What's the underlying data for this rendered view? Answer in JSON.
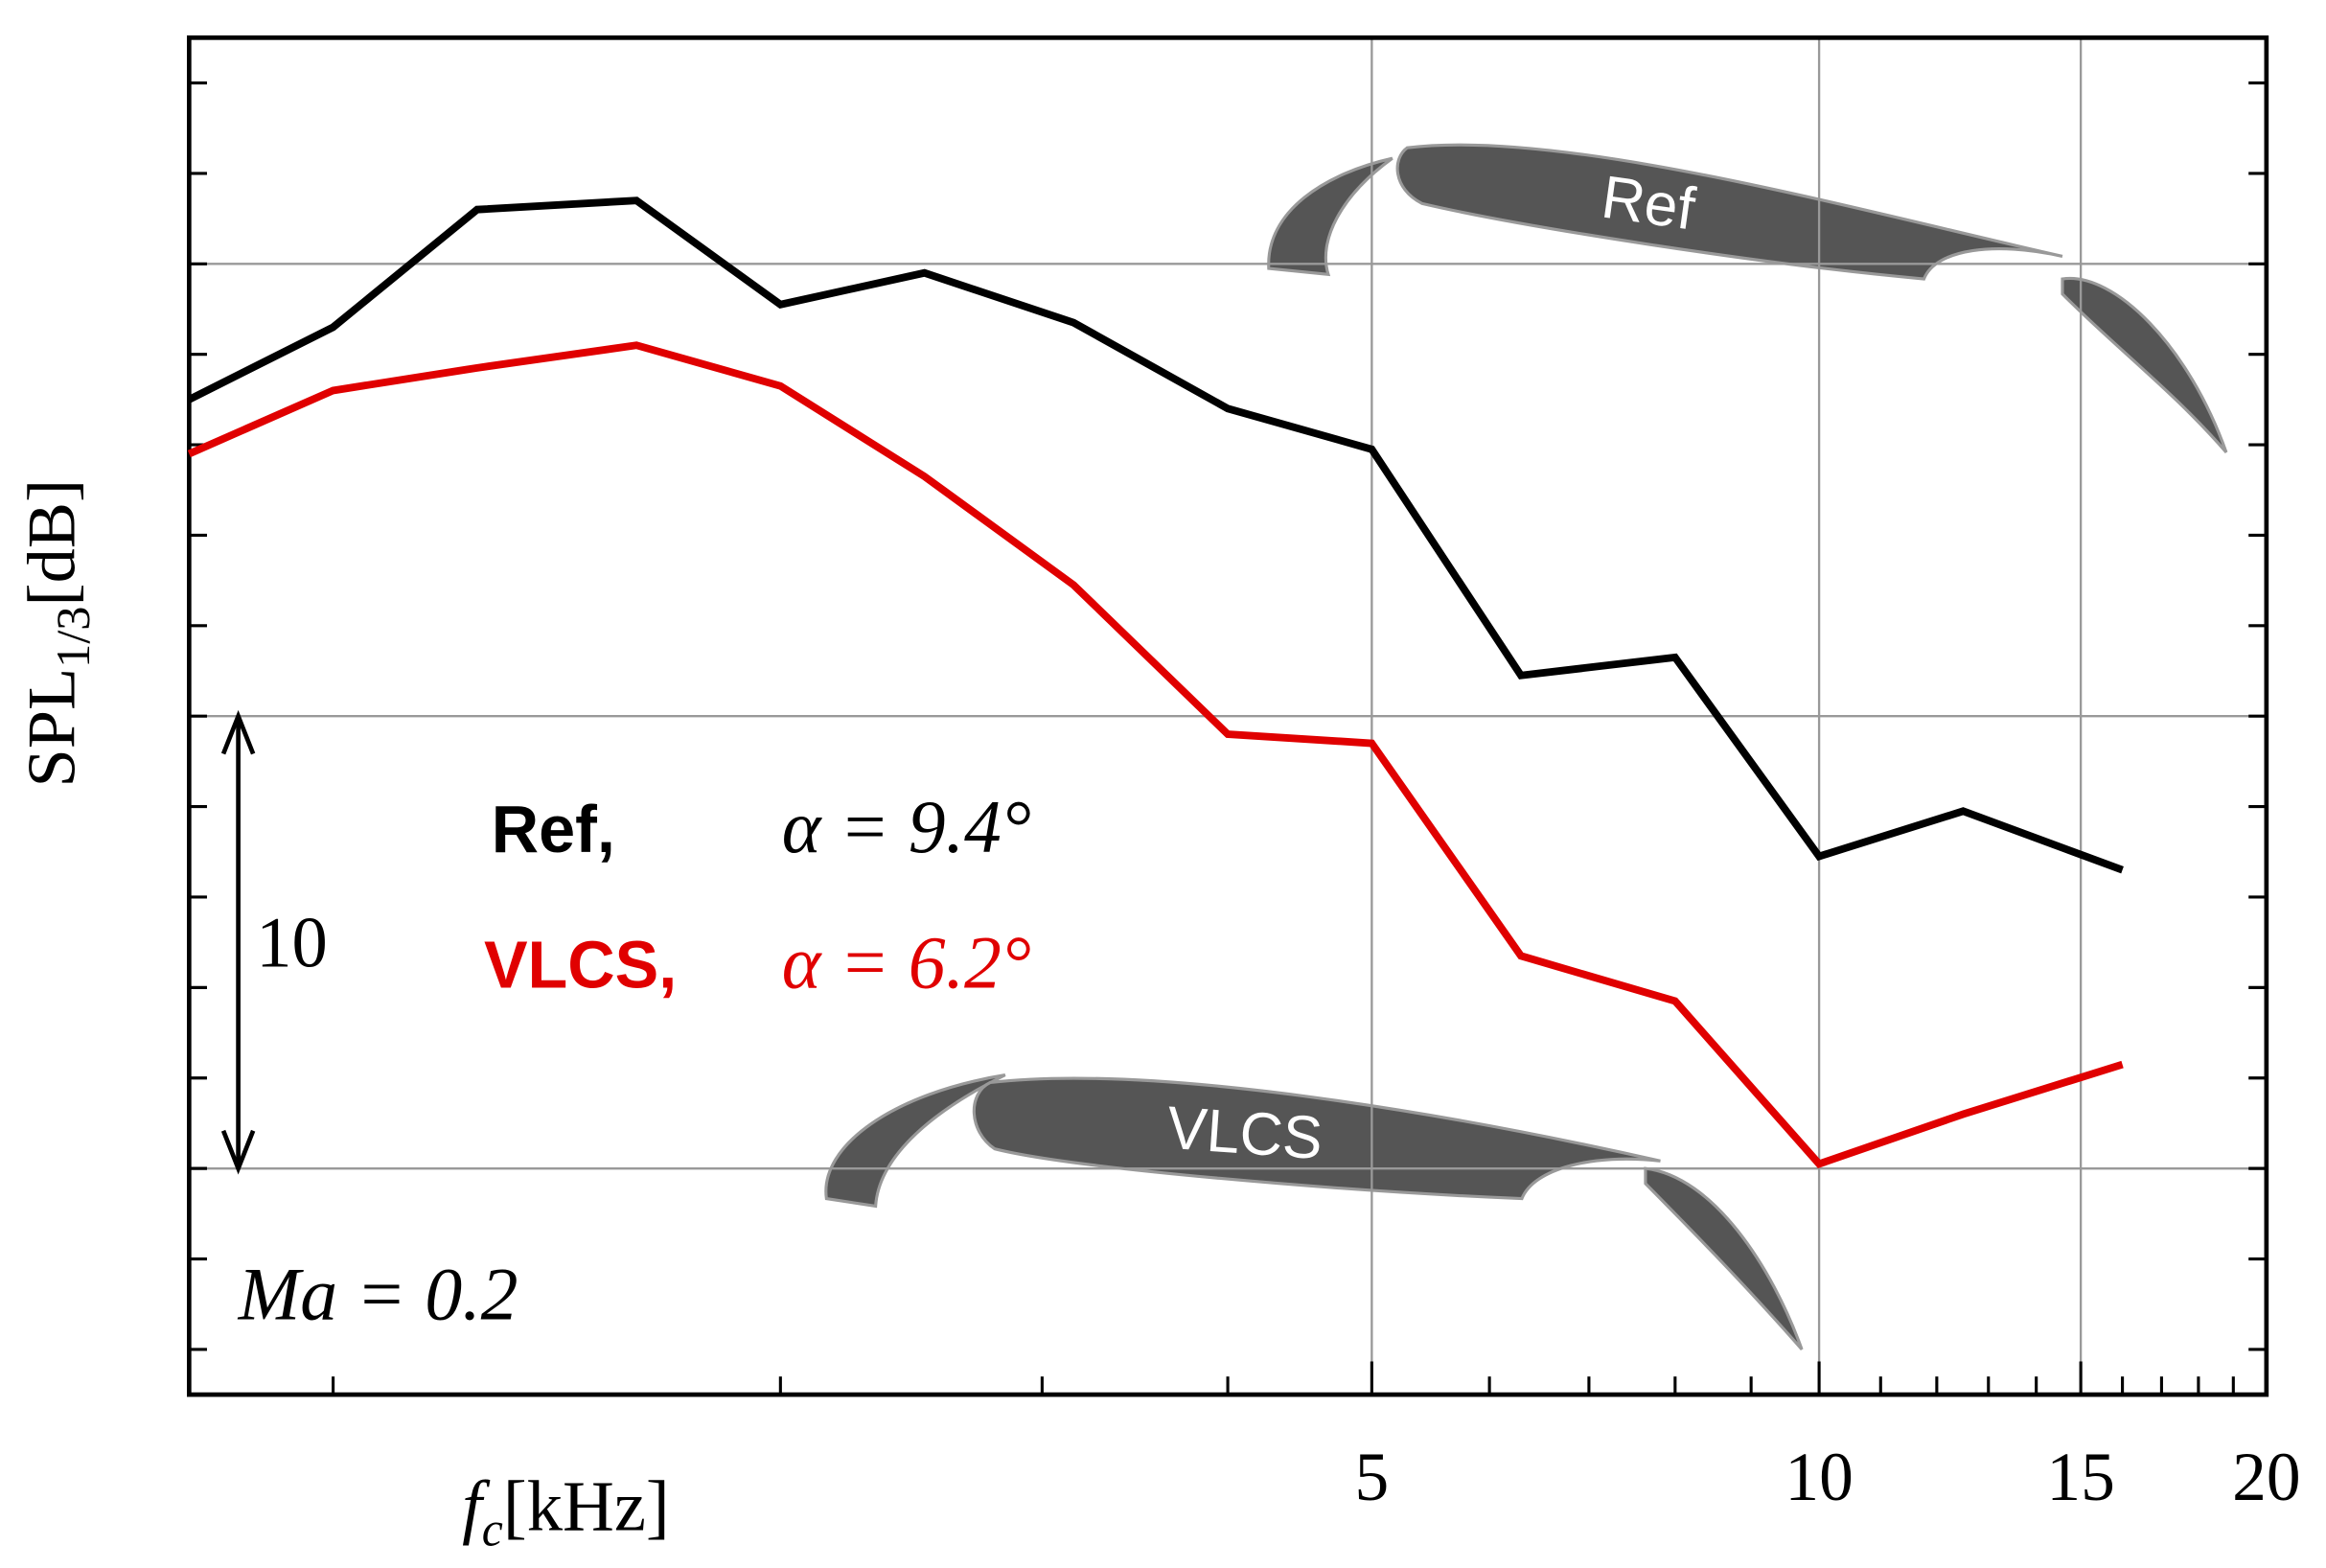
{
  "chart_data": {
    "type": "line",
    "x_label": {
      "main": "f",
      "sub": "c",
      "unit": "[kHz]"
    },
    "y_label": {
      "main": "SPL",
      "sub": "1/3",
      "unit": "[dB]"
    },
    "x": [
      0.8,
      1,
      1.25,
      1.6,
      2,
      2.5,
      3.15,
      4,
      5,
      6.3,
      8,
      10,
      12.5,
      16
    ],
    "series": [
      {
        "name": "Ref",
        "legend": "Ref,",
        "condition": "α = 9.4°",
        "color": "#000000",
        "values": [
          22.0,
          23.6,
          26.2,
          26.4,
          24.1,
          24.8,
          23.7,
          21.8,
          20.9,
          15.9,
          16.3,
          11.9,
          12.9,
          11.6
        ]
      },
      {
        "name": "VLCS",
        "legend": "VLCS,",
        "condition": "α = 6.2°",
        "color": "#e00000",
        "values": [
          20.8,
          22.2,
          22.7,
          23.2,
          22.3,
          20.3,
          17.9,
          14.6,
          14.4,
          9.7,
          8.7,
          5.1,
          6.2,
          7.3
        ]
      }
    ],
    "xlim": [
      0.8,
      20
    ],
    "log_x": true,
    "xticks": [
      5,
      10,
      15,
      20
    ],
    "xminor": [
      1,
      2,
      3,
      4,
      6,
      7,
      8,
      9,
      11,
      12,
      13,
      14,
      16,
      17,
      18,
      19
    ],
    "xgrid": [
      5,
      10,
      15
    ],
    "ylim": [
      0,
      30
    ],
    "yticks": [
      1,
      3,
      5,
      7,
      9,
      11,
      13,
      15,
      17,
      19,
      21,
      23,
      25,
      27,
      29
    ],
    "ygrid": [
      5,
      15,
      25
    ],
    "scale_bar": {
      "label": "10",
      "from": 5,
      "to": 15
    },
    "annotation": "Ma = 0.2"
  }
}
